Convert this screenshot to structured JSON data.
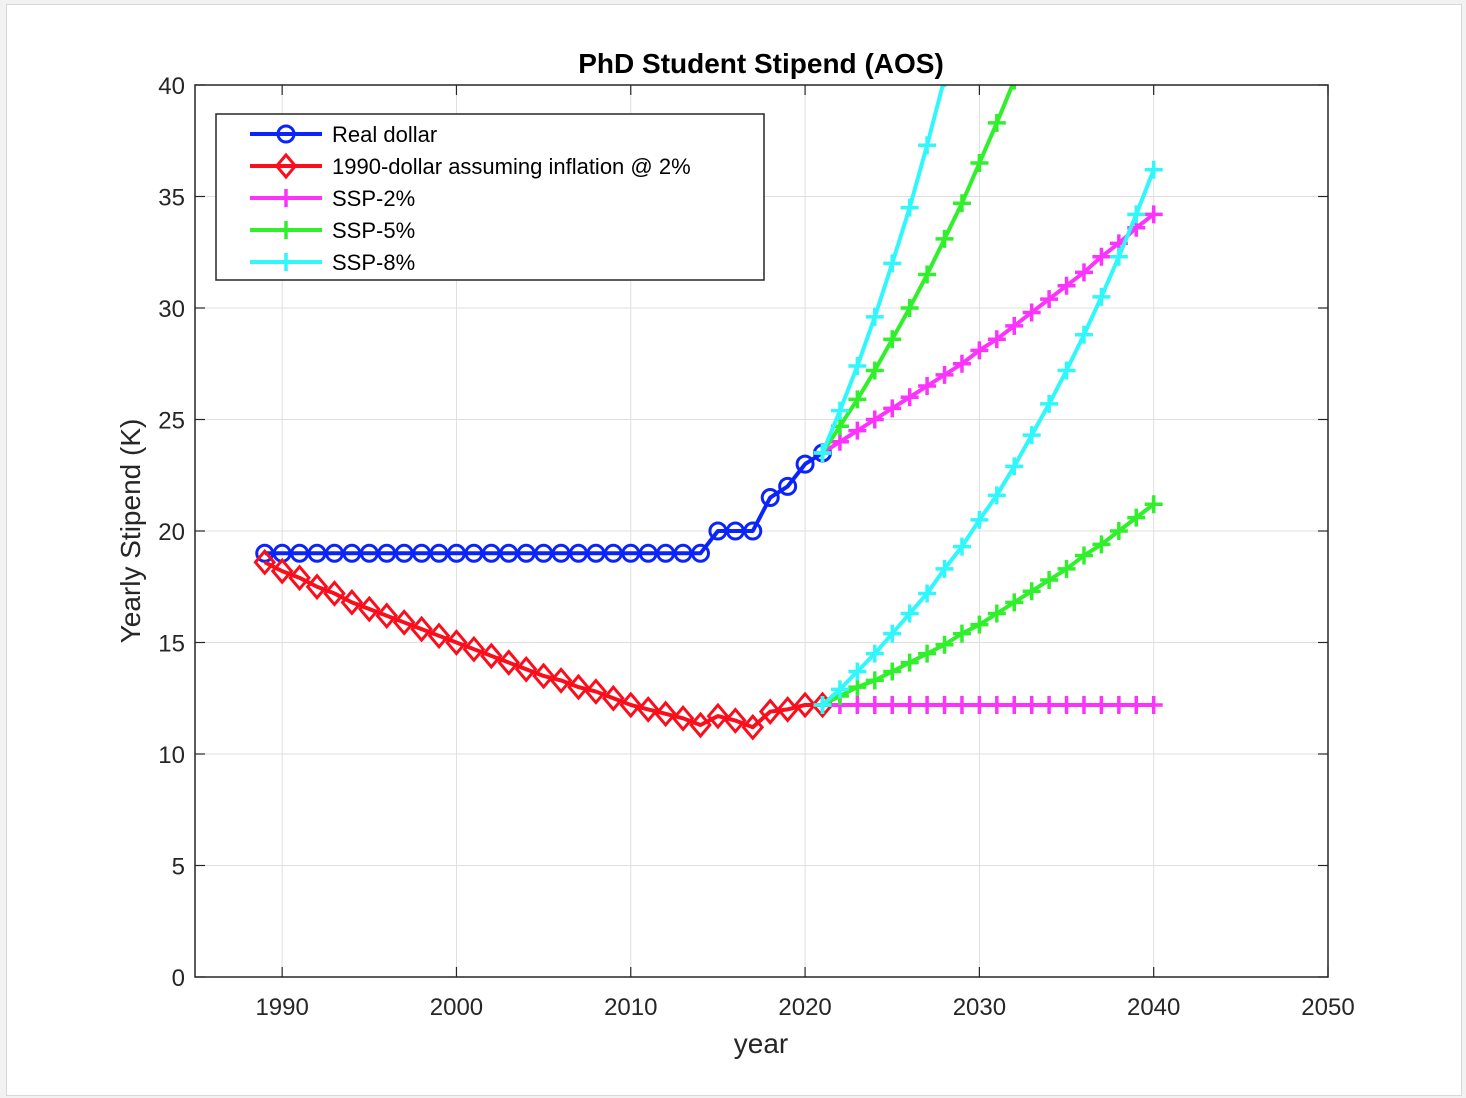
{
  "chart_data": {
    "type": "line",
    "title": "PhD Student Stipend (AOS)",
    "xlabel": "year",
    "ylabel": "Yearly Stipend (K)",
    "xlim": [
      1985,
      2050
    ],
    "ylim": [
      0,
      40
    ],
    "xticks": [
      1990,
      2000,
      2010,
      2020,
      2030,
      2040,
      2050
    ],
    "yticks": [
      0,
      5,
      10,
      15,
      20,
      25,
      30,
      35,
      40
    ],
    "grid": true,
    "legend_position": "top-left",
    "series": [
      {
        "name": "Real dollar",
        "color": "#0b24fb",
        "marker": "circle",
        "x": [
          1989,
          1990,
          1991,
          1992,
          1993,
          1994,
          1995,
          1996,
          1997,
          1998,
          1999,
          2000,
          2001,
          2002,
          2003,
          2004,
          2005,
          2006,
          2007,
          2008,
          2009,
          2010,
          2011,
          2012,
          2013,
          2014,
          2015,
          2016,
          2017,
          2018,
          2019,
          2020,
          2021
        ],
        "y": [
          19,
          19,
          19,
          19,
          19,
          19,
          19,
          19,
          19,
          19,
          19,
          19,
          19,
          19,
          19,
          19,
          19,
          19,
          19,
          19,
          19,
          19,
          19,
          19,
          19,
          19,
          20,
          20,
          20,
          21.5,
          22,
          23,
          23.5
        ]
      },
      {
        "name": "1990-dollar assuming inflation @ 2%",
        "color": "#fc0d1b",
        "marker": "diamond",
        "x": [
          1989,
          1990,
          1991,
          1992,
          1993,
          1994,
          1995,
          1996,
          1997,
          1998,
          1999,
          2000,
          2001,
          2002,
          2003,
          2004,
          2005,
          2006,
          2007,
          2008,
          2009,
          2010,
          2011,
          2012,
          2013,
          2014,
          2015,
          2016,
          2017,
          2018,
          2019,
          2020,
          2021
        ],
        "y": [
          18.6,
          18.2,
          17.9,
          17.5,
          17.2,
          16.8,
          16.5,
          16.2,
          15.9,
          15.6,
          15.3,
          15.0,
          14.7,
          14.4,
          14.1,
          13.8,
          13.5,
          13.3,
          13.0,
          12.8,
          12.5,
          12.2,
          12.0,
          11.8,
          11.6,
          11.3,
          11.7,
          11.5,
          11.2,
          11.9,
          12.0,
          12.2,
          12.2
        ]
      },
      {
        "name": "SSP-2%",
        "color": "#fb33fc",
        "marker": "plus",
        "x": [
          2021,
          2022,
          2023,
          2024,
          2025,
          2026,
          2027,
          2028,
          2029,
          2030,
          2031,
          2032,
          2033,
          2034,
          2035,
          2036,
          2037,
          2038,
          2039,
          2040
        ],
        "y": [
          23.5,
          24.0,
          24.5,
          25.0,
          25.5,
          26.0,
          26.5,
          27.0,
          27.5,
          28.1,
          28.6,
          29.2,
          29.8,
          30.4,
          31.0,
          31.6,
          32.3,
          32.9,
          33.6,
          34.2
        ]
      },
      {
        "name": "SSP-5%",
        "color": "#2ff02b",
        "marker": "plus",
        "x": [
          2021,
          2022,
          2023,
          2024,
          2025,
          2026,
          2027,
          2028,
          2029,
          2030,
          2031,
          2032
        ],
        "y": [
          23.5,
          24.7,
          25.9,
          27.2,
          28.6,
          30.0,
          31.5,
          33.1,
          34.7,
          36.5,
          38.3,
          40.2
        ]
      },
      {
        "name": "SSP-8%",
        "color": "#2ff7fc",
        "marker": "plus",
        "x": [
          2021,
          2022,
          2023,
          2024,
          2025,
          2026,
          2027,
          2028
        ],
        "y": [
          23.5,
          25.4,
          27.4,
          29.6,
          32.0,
          34.5,
          37.3,
          40.3
        ]
      },
      {
        "name": "SSP-2% (1990-dollar)",
        "color": "#fb33fc",
        "marker": "plus",
        "legend": false,
        "x": [
          2021,
          2022,
          2023,
          2024,
          2025,
          2026,
          2027,
          2028,
          2029,
          2030,
          2031,
          2032,
          2033,
          2034,
          2035,
          2036,
          2037,
          2038,
          2039,
          2040
        ],
        "y": [
          12.2,
          12.2,
          12.2,
          12.2,
          12.2,
          12.2,
          12.2,
          12.2,
          12.2,
          12.2,
          12.2,
          12.2,
          12.2,
          12.2,
          12.2,
          12.2,
          12.2,
          12.2,
          12.2,
          12.2
        ]
      },
      {
        "name": "SSP-5% (1990-dollar)",
        "color": "#2ff02b",
        "marker": "plus",
        "legend": false,
        "x": [
          2021,
          2022,
          2023,
          2024,
          2025,
          2026,
          2027,
          2028,
          2029,
          2030,
          2031,
          2032,
          2033,
          2034,
          2035,
          2036,
          2037,
          2038,
          2039,
          2040
        ],
        "y": [
          12.2,
          12.6,
          13.0,
          13.3,
          13.7,
          14.1,
          14.5,
          14.9,
          15.4,
          15.8,
          16.3,
          16.8,
          17.3,
          17.8,
          18.3,
          18.9,
          19.4,
          20.0,
          20.6,
          21.2
        ]
      },
      {
        "name": "SSP-8% (1990-dollar)",
        "color": "#2ff7fc",
        "marker": "plus",
        "legend": false,
        "x": [
          2021,
          2022,
          2023,
          2024,
          2025,
          2026,
          2027,
          2028,
          2029,
          2030,
          2031,
          2032,
          2033,
          2034,
          2035,
          2036,
          2037,
          2038,
          2039,
          2040
        ],
        "y": [
          12.2,
          12.9,
          13.7,
          14.5,
          15.4,
          16.3,
          17.2,
          18.3,
          19.3,
          20.5,
          21.6,
          22.9,
          24.3,
          25.7,
          27.2,
          28.8,
          30.5,
          32.3,
          34.2,
          36.2
        ]
      }
    ]
  }
}
